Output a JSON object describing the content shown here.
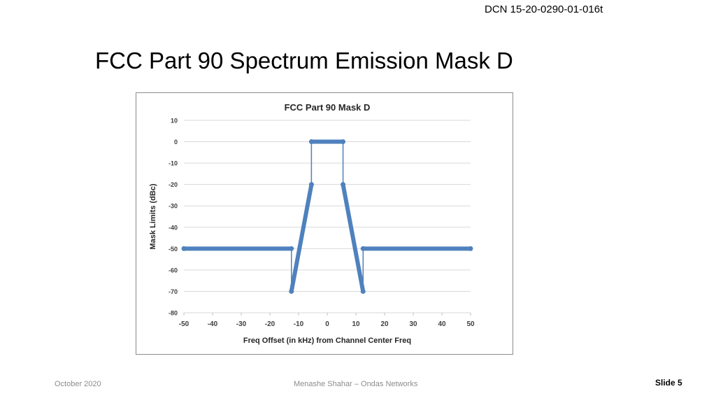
{
  "header": {
    "dcn": "DCN 15-20-0290-01-016t"
  },
  "slide": {
    "title": "FCC Part 90 Spectrum Emission Mask D"
  },
  "footer": {
    "date": "October 2020",
    "author": "Menashe Shahar – Ondas Networks",
    "slide_number": "Slide 5"
  },
  "chart_data": {
    "type": "line",
    "title": "FCC Part 90 Mask D",
    "xlabel": "Freq Offset (in kHz) from Channel Center Freq",
    "ylabel": "Mask Limits (dBc)",
    "xlim": [
      -50,
      50
    ],
    "ylim": [
      -80,
      10
    ],
    "x_ticks": [
      -50,
      -40,
      -30,
      -20,
      -10,
      0,
      10,
      20,
      30,
      40,
      50
    ],
    "y_ticks": [
      10,
      0,
      -10,
      -20,
      -30,
      -40,
      -50,
      -60,
      -70,
      -80
    ],
    "grid": true,
    "legend": "none",
    "series_color": "#4f81bd",
    "series": [
      {
        "x": [
          -50,
          -12.5,
          -12.5,
          -5.5,
          -5.5,
          5.5,
          5.5,
          12.5,
          12.5,
          50
        ],
        "y": [
          -50,
          -50,
          -70,
          -20,
          0,
          0,
          -20,
          -70,
          -50,
          -50
        ]
      }
    ]
  }
}
